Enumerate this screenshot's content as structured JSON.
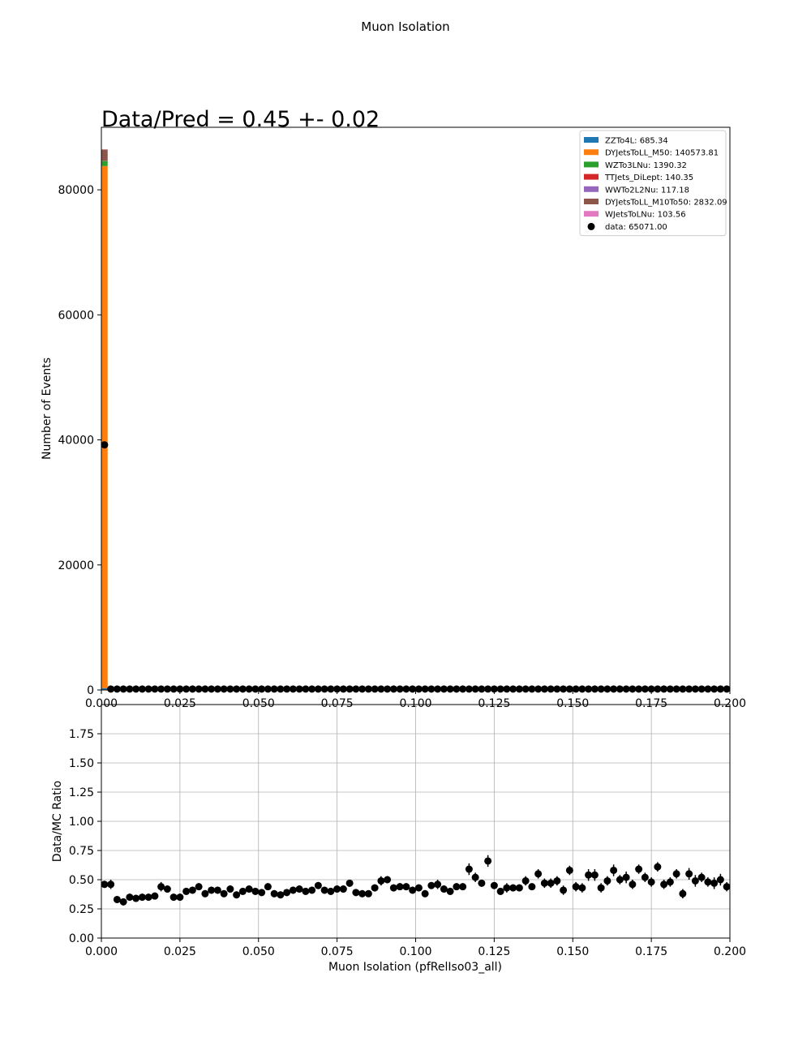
{
  "figure": {
    "suptitle": "Muon Isolation"
  },
  "chart_data": [
    {
      "type": "bar",
      "subtype": "stacked-histogram",
      "title": "Data/Pred = 0.45 +- 0.02",
      "xlabel": "",
      "ylabel": "Number of Events",
      "xlim": [
        0,
        0.2
      ],
      "ylim": [
        0,
        90000
      ],
      "xticks": [
        "0.000",
        "0.025",
        "0.050",
        "0.075",
        "0.100",
        "0.125",
        "0.150",
        "0.175",
        "0.200"
      ],
      "yticks": [
        "0",
        "20000",
        "40000",
        "60000",
        "80000"
      ],
      "ytick_values": [
        0,
        20000,
        40000,
        60000,
        80000
      ],
      "grid": false,
      "legend_position": "top-right",
      "bin_width": 0.002,
      "series": [
        {
          "name": "ZZTo4L: 685.34",
          "color": "#1f77b4",
          "first_bin": 300,
          "rest": 1
        },
        {
          "name": "DYJetsToLL_M50: 140573.81",
          "color": "#ff7f0e",
          "first_bin": 83500,
          "rest": 300
        },
        {
          "name": "WZTo3LNu: 1390.32",
          "color": "#2ca02c",
          "first_bin": 800,
          "rest": 3
        },
        {
          "name": "TTJets_DiLept: 140.35",
          "color": "#d62728",
          "first_bin": 20,
          "rest": 1
        },
        {
          "name": "WWTo2L2Nu: 117.18",
          "color": "#9467bd",
          "first_bin": 20,
          "rest": 1
        },
        {
          "name": "DYJetsToLL_M10To50: 2832.09",
          "color": "#8c564b",
          "first_bin": 1800,
          "rest": 10
        },
        {
          "name": "WJetsToLNu: 103.56",
          "color": "#e377c2",
          "first_bin": 20,
          "rest": 1
        }
      ],
      "data": {
        "name": "data: 65071.00",
        "color": "#000000",
        "first_bin": 39200,
        "rest": 150
      }
    },
    {
      "type": "scatter",
      "subtype": "ratio-errorbar",
      "title": "",
      "xlabel": "Muon Isolation (pfRelIso03_all)",
      "ylabel": "Data/MC Ratio",
      "xlim": [
        0,
        0.2
      ],
      "ylim": [
        0,
        2.0
      ],
      "xticks": [
        "0.000",
        "0.025",
        "0.050",
        "0.075",
        "0.100",
        "0.125",
        "0.150",
        "0.175",
        "0.200"
      ],
      "yticks": [
        "0.00",
        "0.25",
        "0.50",
        "0.75",
        "1.00",
        "1.25",
        "1.50",
        "1.75"
      ],
      "ytick_values": [
        0,
        0.25,
        0.5,
        0.75,
        1.0,
        1.25,
        1.5,
        1.75
      ],
      "grid": true,
      "x": [
        0.001,
        0.003,
        0.005,
        0.007,
        0.009,
        0.011,
        0.013,
        0.015,
        0.017,
        0.019,
        0.021,
        0.023,
        0.025,
        0.027,
        0.029,
        0.031,
        0.033,
        0.035,
        0.037,
        0.039,
        0.041,
        0.043,
        0.045,
        0.047,
        0.049,
        0.051,
        0.053,
        0.055,
        0.057,
        0.059,
        0.061,
        0.063,
        0.065,
        0.067,
        0.069,
        0.071,
        0.073,
        0.075,
        0.077,
        0.079,
        0.081,
        0.083,
        0.085,
        0.087,
        0.089,
        0.091,
        0.093,
        0.095,
        0.097,
        0.099,
        0.101,
        0.103,
        0.105,
        0.107,
        0.109,
        0.111,
        0.113,
        0.115,
        0.117,
        0.119,
        0.121,
        0.123,
        0.125,
        0.127,
        0.129,
        0.131,
        0.133,
        0.135,
        0.137,
        0.139,
        0.141,
        0.143,
        0.145,
        0.147,
        0.149,
        0.151,
        0.153,
        0.155,
        0.157,
        0.159,
        0.161,
        0.163,
        0.165,
        0.167,
        0.169,
        0.171,
        0.173,
        0.175,
        0.177,
        0.179,
        0.181,
        0.183,
        0.185,
        0.187,
        0.189,
        0.191,
        0.193,
        0.195,
        0.197,
        0.199
      ],
      "y": [
        0.46,
        0.46,
        0.33,
        0.31,
        0.35,
        0.34,
        0.35,
        0.35,
        0.36,
        0.44,
        0.42,
        0.35,
        0.35,
        0.4,
        0.41,
        0.44,
        0.38,
        0.41,
        0.41,
        0.38,
        0.42,
        0.37,
        0.4,
        0.42,
        0.4,
        0.39,
        0.44,
        0.38,
        0.37,
        0.39,
        0.41,
        0.42,
        0.4,
        0.41,
        0.45,
        0.41,
        0.4,
        0.42,
        0.42,
        0.47,
        0.39,
        0.38,
        0.38,
        0.43,
        0.49,
        0.5,
        0.43,
        0.44,
        0.44,
        0.41,
        0.43,
        0.38,
        0.45,
        0.46,
        0.42,
        0.4,
        0.44,
        0.44,
        0.59,
        0.52,
        0.47,
        0.66,
        0.45,
        0.4,
        0.43,
        0.43,
        0.43,
        0.49,
        0.44,
        0.55,
        0.47,
        0.47,
        0.49,
        0.41,
        0.58,
        0.44,
        0.43,
        0.54,
        0.54,
        0.43,
        0.49,
        0.58,
        0.5,
        0.52,
        0.46,
        0.59,
        0.52,
        0.48,
        0.61,
        0.46,
        0.48,
        0.55,
        0.38,
        0.55,
        0.49,
        0.52,
        0.48,
        0.47,
        0.5,
        0.44
      ],
      "yerr": [
        0.03,
        0.04,
        0.03,
        0.03,
        0.03,
        0.03,
        0.03,
        0.03,
        0.03,
        0.04,
        0.03,
        0.03,
        0.03,
        0.03,
        0.03,
        0.03,
        0.03,
        0.03,
        0.03,
        0.03,
        0.03,
        0.03,
        0.03,
        0.03,
        0.03,
        0.03,
        0.03,
        0.03,
        0.03,
        0.03,
        0.03,
        0.03,
        0.03,
        0.03,
        0.03,
        0.03,
        0.03,
        0.03,
        0.03,
        0.03,
        0.03,
        0.03,
        0.03,
        0.03,
        0.04,
        0.03,
        0.03,
        0.03,
        0.03,
        0.03,
        0.03,
        0.03,
        0.03,
        0.04,
        0.03,
        0.03,
        0.03,
        0.03,
        0.05,
        0.04,
        0.03,
        0.05,
        0.03,
        0.03,
        0.04,
        0.03,
        0.03,
        0.04,
        0.03,
        0.04,
        0.04,
        0.04,
        0.04,
        0.04,
        0.04,
        0.04,
        0.04,
        0.05,
        0.05,
        0.04,
        0.04,
        0.05,
        0.04,
        0.05,
        0.04,
        0.04,
        0.04,
        0.04,
        0.04,
        0.04,
        0.04,
        0.04,
        0.04,
        0.05,
        0.05,
        0.04,
        0.04,
        0.05,
        0.05,
        0.04
      ]
    }
  ]
}
